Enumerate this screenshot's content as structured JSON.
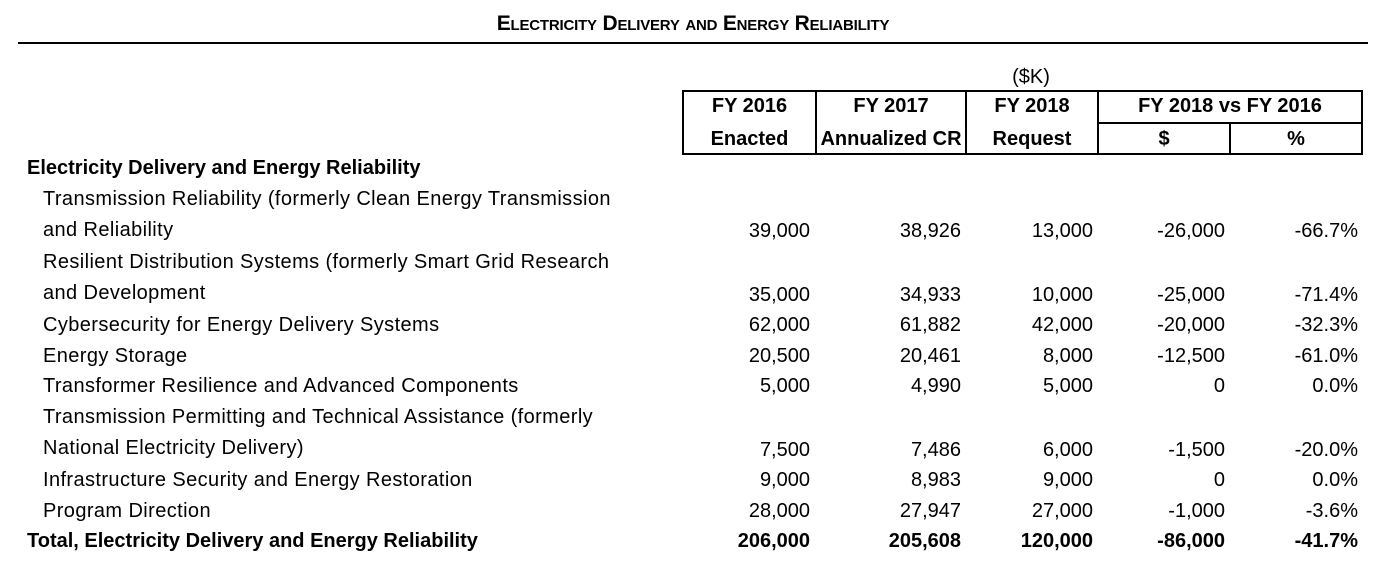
{
  "title": "Electricity Delivery and Energy Reliability",
  "unit": "($K)",
  "columns": {
    "fy2016_line1": "FY 2016",
    "fy2016_line2": "Enacted",
    "fy2017_line1": "FY 2017",
    "fy2017_line2": "Annualized CR",
    "fy2018_line1": "FY 2018",
    "fy2018_line2": "Request",
    "compare": "FY 2018 vs FY 2016",
    "dollar": "$",
    "percent": "%"
  },
  "section_header": "Electricity Delivery and Energy Reliability",
  "rows": [
    {
      "label_line1": "Transmission Reliability (formerly Clean Energy Transmission",
      "label_line2": "and Reliability",
      "fy2016": "39,000",
      "fy2017": "38,926",
      "fy2018": "13,000",
      "diff": "-26,000",
      "pct": "-66.7%"
    },
    {
      "label_line1": "Resilient Distribution Systems (formerly Smart Grid Research",
      "label_line2": "and Development",
      "fy2016": "35,000",
      "fy2017": "34,933",
      "fy2018": "10,000",
      "diff": "-25,000",
      "pct": "-71.4%"
    },
    {
      "label": "Cybersecurity for Energy Delivery Systems",
      "fy2016": "62,000",
      "fy2017": "61,882",
      "fy2018": "42,000",
      "diff": "-20,000",
      "pct": "-32.3%"
    },
    {
      "label": "Energy Storage",
      "fy2016": "20,500",
      "fy2017": "20,461",
      "fy2018": "8,000",
      "diff": "-12,500",
      "pct": "-61.0%"
    },
    {
      "label": "Transformer Resilience and Advanced Components",
      "fy2016": "5,000",
      "fy2017": "4,990",
      "fy2018": "5,000",
      "diff": "0",
      "pct": "0.0%"
    },
    {
      "label_line1": "Transmission Permitting and Technical Assistance (formerly",
      "label_line2": "National Electricity Delivery)",
      "fy2016": "7,500",
      "fy2017": "7,486",
      "fy2018": "6,000",
      "diff": "-1,500",
      "pct": "-20.0%"
    },
    {
      "label": "Infrastructure Security and Energy Restoration",
      "fy2016": "9,000",
      "fy2017": "8,983",
      "fy2018": "9,000",
      "diff": "0",
      "pct": "0.0%"
    },
    {
      "label": "Program Direction",
      "fy2016": "28,000",
      "fy2017": "27,947",
      "fy2018": "27,000",
      "diff": "-1,000",
      "pct": "-3.6%"
    }
  ],
  "total": {
    "label": "Total, Electricity Delivery and Energy Reliability",
    "fy2016": "206,000",
    "fy2017": "205,608",
    "fy2018": "120,000",
    "diff": "-86,000",
    "pct": "-41.7%"
  }
}
